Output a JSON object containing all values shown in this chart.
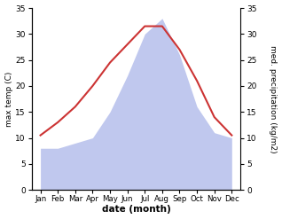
{
  "months": [
    "Jan",
    "Feb",
    "Mar",
    "Apr",
    "May",
    "Jun",
    "Jul",
    "Aug",
    "Sep",
    "Oct",
    "Nov",
    "Dec"
  ],
  "max_temp": [
    10.5,
    13,
    16,
    20,
    24.5,
    28,
    31.5,
    31.5,
    27,
    21,
    14,
    10.5
  ],
  "precipitation": [
    8,
    8,
    9,
    10,
    15,
    22,
    30,
    33,
    26,
    16,
    11,
    10
  ],
  "temp_color": "#cc3333",
  "precip_fill_color": "#c0c8ee",
  "ylabel_left": "max temp (C)",
  "ylabel_right": "med. precipitation (kg/m2)",
  "xlabel": "date (month)",
  "ylim_left": [
    0,
    35
  ],
  "ylim_right": [
    0,
    35
  ],
  "yticks": [
    0,
    5,
    10,
    15,
    20,
    25,
    30,
    35
  ],
  "right_ytick_labels": [
    "0",
    "5",
    "10",
    "15",
    "20",
    "25",
    "30",
    "35"
  ]
}
